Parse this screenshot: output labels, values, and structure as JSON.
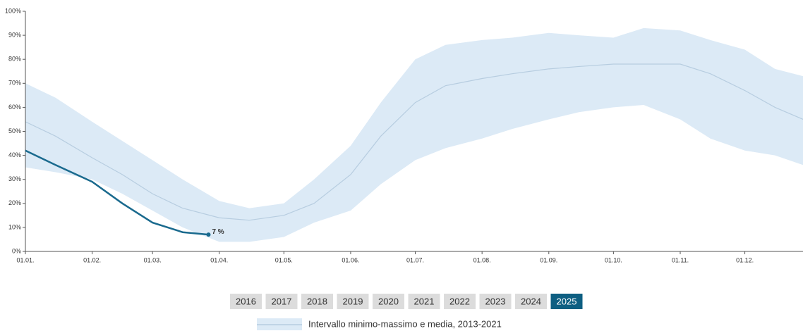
{
  "chart_data": {
    "type": "band_line",
    "x": [
      "01.01.",
      "15.01.",
      "01.02.",
      "15.02.",
      "01.03.",
      "15.03.",
      "01.04.",
      "15.04.",
      "01.05.",
      "15.05.",
      "01.06.",
      "15.06.",
      "01.07.",
      "15.07.",
      "01.08.",
      "15.08.",
      "01.09.",
      "15.09.",
      "01.10.",
      "15.10.",
      "01.11.",
      "15.11.",
      "01.12.",
      "15.12.",
      "28.12."
    ],
    "band": {
      "name": "Intervallo minimo-massimo e media, 2013-2021",
      "color": "#dceaf6",
      "line_color": "#b7cde0",
      "max": [
        70,
        64,
        54,
        46,
        38,
        30,
        21,
        18,
        20,
        30,
        44,
        62,
        80,
        86,
        88,
        89,
        91,
        90,
        89,
        93,
        92,
        88,
        84,
        76,
        73
      ],
      "mean": [
        54,
        48,
        39,
        32,
        24,
        18,
        14,
        13,
        15,
        20,
        32,
        48,
        62,
        69,
        72,
        74,
        76,
        77,
        78,
        78,
        78,
        74,
        67,
        60,
        55
      ],
      "min": [
        35,
        33,
        30,
        24,
        17,
        10,
        4,
        4,
        6,
        12,
        17,
        28,
        38,
        43,
        47,
        51,
        55,
        58,
        60,
        61,
        55,
        47,
        42,
        40,
        36
      ]
    },
    "series": [
      {
        "color": "#1a6a8e",
        "x": [
          "01.01.",
          "15.01.",
          "01.02.",
          "15.02.",
          "01.03.",
          "15.03.",
          "27.03."
        ],
        "values": [
          42,
          36,
          29,
          20,
          12,
          8,
          7
        ],
        "value_labels": [
          null,
          null,
          null,
          null,
          null,
          null,
          "7 %"
        ]
      }
    ],
    "xlim": [
      "01.01.",
      "28.12."
    ],
    "xticks": [
      "01.01.",
      "01.02.",
      "01.03.",
      "01.04.",
      "01.05.",
      "01.06.",
      "01.07.",
      "01.08.",
      "01.09.",
      "01.10.",
      "01.11.",
      "01.12."
    ],
    "ylim": [
      0,
      100
    ],
    "yticks": [
      {
        "value": 0,
        "label": "0%"
      },
      {
        "value": 10,
        "label": "10%"
      },
      {
        "value": 20,
        "label": "20%"
      },
      {
        "value": 30,
        "label": "30%"
      },
      {
        "value": 40,
        "label": "40%"
      },
      {
        "value": 50,
        "label": "50%"
      },
      {
        "value": 60,
        "label": "60%"
      },
      {
        "value": 70,
        "label": "70%"
      },
      {
        "value": 80,
        "label": "80%"
      },
      {
        "value": 90,
        "label": "90%"
      },
      {
        "value": 100,
        "label": "100%"
      }
    ],
    "years": [
      2016,
      2017,
      2018,
      2019,
      2020,
      2021,
      2022,
      2023,
      2024,
      2025
    ],
    "selected_year": 9
  }
}
